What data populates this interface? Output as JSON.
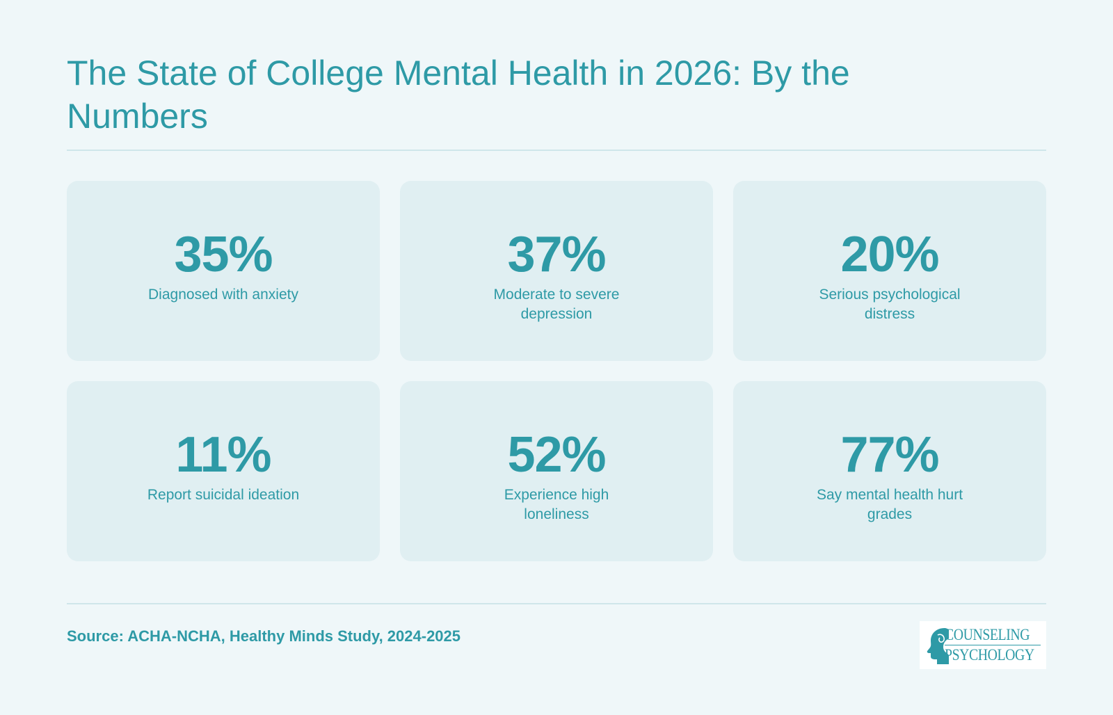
{
  "header": {
    "title": "The State of College Mental Health in 2026: By the Numbers"
  },
  "stats": [
    {
      "value": "35%",
      "label": "Diagnosed with anxiety"
    },
    {
      "value": "37%",
      "label": "Moderate to severe depression"
    },
    {
      "value": "20%",
      "label": "Serious psychological distress"
    },
    {
      "value": "11%",
      "label": "Report suicidal ideation"
    },
    {
      "value": "52%",
      "label": "Experience high loneliness"
    },
    {
      "value": "77%",
      "label": "Say mental health hurt grades"
    }
  ],
  "footer": {
    "source": "Source: ACHA-NCHA, Healthy Minds Study, 2024-2025",
    "logo_line1": "COUNSELING",
    "logo_line2": "PSYCHOLOGY",
    "logo_icon": "head-profile-icon"
  },
  "colors": {
    "background": "#eff7f9",
    "card": "#e0eff2",
    "accent": "#2e9aa6",
    "rule": "#cfe6ea"
  }
}
